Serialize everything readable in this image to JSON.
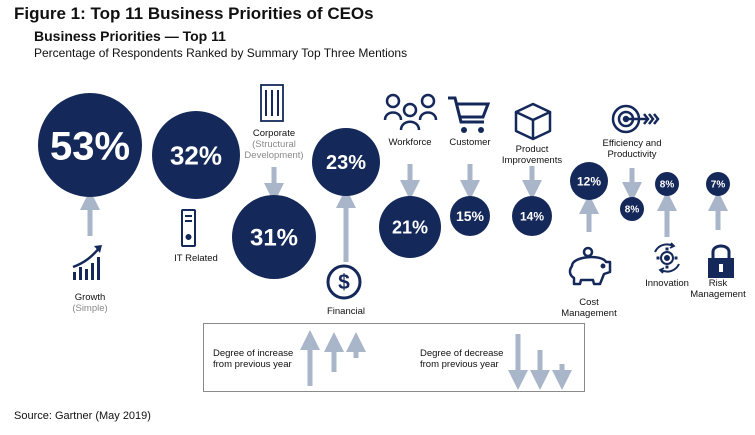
{
  "figure_title": "Figure 1: Top 11 Business Priorities of CEOs",
  "source": "Source: Gartner (May 2019)",
  "legend": {
    "increase": "Degree of increase\nfrom previous year",
    "decrease": "Degree of decrease\nfrom previous year"
  },
  "colors": {
    "bubble": "#14285a",
    "arrow": "#a9b6ca",
    "text_on_bubble": "#ffffff",
    "muted": "#8a8a8a"
  },
  "chart_data": {
    "type": "bubble",
    "title": "Business Priorities — Top 11",
    "subtitle": "Percentage of Respondents Ranked by Summary Top Three Mentions",
    "categories": [
      "Growth (Simple)",
      "IT Related",
      "Corporate (Structural Development)",
      "Financial",
      "Workforce",
      "Customer",
      "Product Improvements",
      "Cost Management",
      "Efficiency and Productivity",
      "Innovation",
      "Risk Management"
    ],
    "items": [
      {
        "category": "Growth",
        "sub": "(Simple)",
        "value": 53,
        "label": "53%",
        "trend": "increase",
        "icon": "growth-chart-icon"
      },
      {
        "category": "IT Related",
        "sub": "",
        "value": 32,
        "label": "32%",
        "trend": "none",
        "icon": "server-icon"
      },
      {
        "category": "Corporate",
        "sub": "(Structural\nDevelopment)",
        "value": 31,
        "label": "31%",
        "trend": "decrease",
        "icon": "building-icon"
      },
      {
        "category": "Financial",
        "sub": "",
        "value": 23,
        "label": "23%",
        "trend": "increase",
        "icon": "dollar-icon"
      },
      {
        "category": "Workforce",
        "sub": "",
        "value": 21,
        "label": "21%",
        "trend": "decrease",
        "icon": "people-icon"
      },
      {
        "category": "Customer",
        "sub": "",
        "value": 15,
        "label": "15%",
        "trend": "decrease",
        "icon": "cart-icon"
      },
      {
        "category": "Product\nImprovements",
        "sub": "",
        "value": 14,
        "label": "14%",
        "trend": "decrease",
        "icon": "box-icon"
      },
      {
        "category": "Cost\nManagement",
        "sub": "",
        "value": 12,
        "label": "12%",
        "trend": "increase",
        "icon": "piggy-bank-icon"
      },
      {
        "category": "Efficiency and\nProductivity",
        "sub": "",
        "value": 8,
        "label": "8%",
        "trend": "decrease",
        "icon": "target-icon"
      },
      {
        "category": "Innovation",
        "sub": "",
        "value": 8,
        "label": "8%",
        "trend": "increase",
        "icon": "innovation-gear-icon"
      },
      {
        "category": "Risk\nManagement",
        "sub": "",
        "value": 7,
        "label": "7%",
        "trend": "increase",
        "icon": "lock-icon"
      }
    ]
  }
}
